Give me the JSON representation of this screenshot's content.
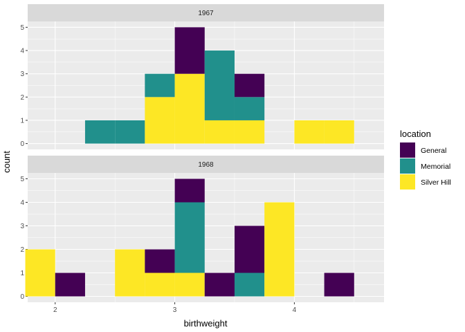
{
  "chart_data": {
    "type": "bar",
    "subtype": "stacked-histogram-faceted",
    "xlabel": "birthweight",
    "ylabel": "count",
    "x_ticks": [
      2,
      3,
      4
    ],
    "y_ticks": [
      0,
      1,
      2,
      3,
      4,
      5
    ],
    "xlim": [
      1.77,
      4.75
    ],
    "ylim": [
      0,
      5.25
    ],
    "bin_width": 0.25,
    "bins": [
      1.875,
      2.125,
      2.375,
      2.625,
      2.875,
      3.125,
      3.375,
      3.625,
      3.875,
      4.125,
      4.375,
      4.625
    ],
    "grid": true,
    "legend": {
      "title": "location",
      "placement": "right",
      "entries": [
        {
          "label": "General",
          "color": "#440154"
        },
        {
          "label": "Memorial",
          "color": "#21908C"
        },
        {
          "label": "Silver Hill",
          "color": "#FDE725"
        }
      ]
    },
    "facets": [
      {
        "label": "1967",
        "series": [
          {
            "name": "General",
            "values": [
              0,
              0,
              0,
              0,
              0,
              2,
              0,
              1,
              0,
              0,
              0
            ]
          },
          {
            "name": "Memorial",
            "values": [
              0,
              0,
              1,
              1,
              1,
              0,
              3,
              1,
              0,
              0,
              0
            ]
          },
          {
            "name": "Silver Hill",
            "values": [
              0,
              0,
              0,
              0,
              2,
              3,
              1,
              1,
              0,
              1,
              1
            ]
          }
        ]
      },
      {
        "label": "1968",
        "series": [
          {
            "name": "General",
            "values": [
              0,
              1,
              0,
              0,
              1,
              1,
              1,
              2,
              0,
              0,
              1
            ]
          },
          {
            "name": "Memorial",
            "values": [
              0,
              0,
              0,
              0,
              0,
              3,
              0,
              1,
              0,
              0,
              0
            ]
          },
          {
            "name": "Silver Hill",
            "values": [
              2,
              0,
              0,
              2,
              1,
              1,
              0,
              0,
              4,
              0,
              0
            ]
          }
        ]
      }
    ]
  }
}
